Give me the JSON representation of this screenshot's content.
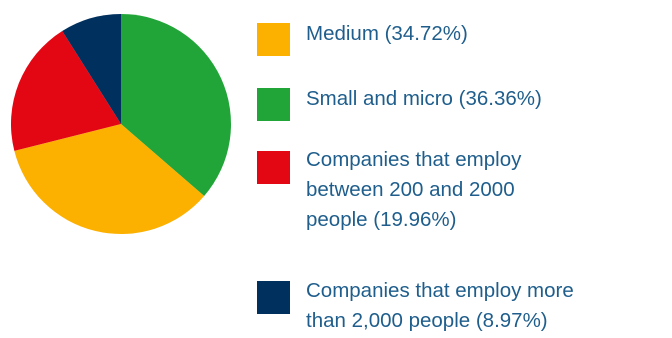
{
  "chart_data": {
    "type": "pie",
    "title": "",
    "slices": [
      {
        "label": "Small and micro (36.36%)",
        "value": 36.36,
        "color": "#21a538"
      },
      {
        "label": "Medium (34.72%)",
        "value": 34.72,
        "color": "#fcb000"
      },
      {
        "label": "Companies that employ between 200 and 2000 people (19.96%)",
        "value": 19.96,
        "color": "#e30613"
      },
      {
        "label": "Companies that employ more than 2,000 people (8.97%)",
        "value": 8.97,
        "color": "#00305e"
      }
    ],
    "legend": {
      "placement": "right",
      "items": [
        {
          "lines": [
            "Medium (34.72%)"
          ],
          "color": "#fcb000"
        },
        {
          "lines": [
            "Small and micro (36.36%)"
          ],
          "color": "#21a538"
        },
        {
          "lines": [
            "Companies that employ",
            "between 200 and 2000",
            "people (19.96%)"
          ],
          "color": "#e30613"
        },
        {
          "lines": [
            "Companies that employ more",
            "than 2,000 people (8.97%)"
          ],
          "color": "#00305e"
        }
      ]
    }
  }
}
